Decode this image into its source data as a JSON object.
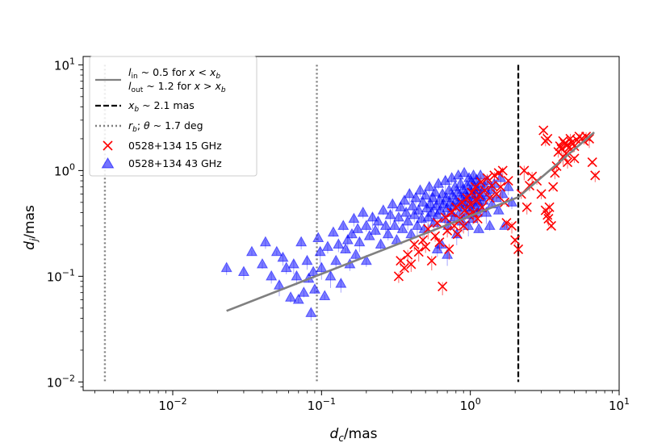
{
  "chart_data": {
    "type": "scatter",
    "title": "",
    "xlabel": {
      "main": "d",
      "sub": "c",
      "rest": "/mas"
    },
    "ylabel": {
      "main": "d",
      "sub": "j",
      "rest": "/mas"
    },
    "xscale": "log",
    "yscale": "log",
    "xlim": [
      0.0025,
      10
    ],
    "ylim": [
      0.0083,
      12
    ],
    "xticks": [
      {
        "value": 0.01,
        "base": "10",
        "exp": "−2"
      },
      {
        "value": 0.1,
        "base": "10",
        "exp": "−1"
      },
      {
        "value": 1,
        "base": "10",
        "exp": "0"
      },
      {
        "value": 10,
        "base": "10",
        "exp": "1"
      }
    ],
    "yticks": [
      {
        "value": 0.01,
        "base": "10",
        "exp": "−2"
      },
      {
        "value": 0.1,
        "base": "10",
        "exp": "−1"
      },
      {
        "value": 1,
        "base": "10",
        "exp": "0"
      },
      {
        "value": 10,
        "base": "10",
        "exp": "1"
      }
    ],
    "legend_position": "top-left",
    "legend": [
      {
        "key": "fit",
        "line1": "l_in ~ 0.5 for x < x_b",
        "line2": "l_out ~ 1.2 for x > x_b"
      },
      {
        "key": "xb",
        "text": "x_b ~ 2.1 mas"
      },
      {
        "key": "rb",
        "text": "r_b;  θ ~ 1.7 deg"
      },
      {
        "key": "s15",
        "text": "0528+134 15 GHz"
      },
      {
        "key": "s43",
        "text": "0528+134 43 GHz"
      }
    ],
    "fit_line": {
      "color": "#808080",
      "points": [
        [
          0.023,
          0.047
        ],
        [
          2.1,
          0.56
        ],
        [
          6.8,
          2.3
        ]
      ]
    },
    "vlines": [
      {
        "x": 2.1,
        "style": "dashed",
        "color": "#000000",
        "ymin": 0.01,
        "ymax": 10
      },
      {
        "x": 0.0035,
        "style": "dotted",
        "color": "#808080",
        "ymin": 0.01,
        "ymax": 10
      },
      {
        "x": 0.093,
        "style": "dotted",
        "color": "#808080",
        "ymin": 0.01,
        "ymax": 10
      }
    ],
    "series": [
      {
        "key": "s15",
        "name": "0528+134 15 GHz",
        "marker": "x",
        "color": "#ff0000",
        "points": [
          [
            0.33,
            0.1
          ],
          [
            0.34,
            0.14
          ],
          [
            0.36,
            0.12
          ],
          [
            0.38,
            0.16
          ],
          [
            0.4,
            0.13
          ],
          [
            0.42,
            0.2
          ],
          [
            0.45,
            0.17
          ],
          [
            0.48,
            0.22
          ],
          [
            0.5,
            0.19
          ],
          [
            0.52,
            0.28
          ],
          [
            0.55,
            0.14
          ],
          [
            0.58,
            0.24
          ],
          [
            0.6,
            0.32
          ],
          [
            0.62,
            0.21
          ],
          [
            0.65,
            0.08
          ],
          [
            0.68,
            0.36
          ],
          [
            0.7,
            0.27
          ],
          [
            0.72,
            0.18
          ],
          [
            0.75,
            0.4
          ],
          [
            0.78,
            0.3
          ],
          [
            0.8,
            0.45
          ],
          [
            0.82,
            0.25
          ],
          [
            0.85,
            0.35
          ],
          [
            0.88,
            0.5
          ],
          [
            0.9,
            0.3
          ],
          [
            0.92,
            0.42
          ],
          [
            0.95,
            0.55
          ],
          [
            0.98,
            0.38
          ],
          [
            1.0,
            0.48
          ],
          [
            1.02,
            0.62
          ],
          [
            1.05,
            0.4
          ],
          [
            1.08,
            0.7
          ],
          [
            1.1,
            0.52
          ],
          [
            1.12,
            0.35
          ],
          [
            1.15,
            0.58
          ],
          [
            1.18,
            0.78
          ],
          [
            1.2,
            0.45
          ],
          [
            1.25,
            0.65
          ],
          [
            1.3,
            0.85
          ],
          [
            1.35,
            0.55
          ],
          [
            1.4,
            0.72
          ],
          [
            1.45,
            0.9
          ],
          [
            1.5,
            0.6
          ],
          [
            1.55,
            0.95
          ],
          [
            1.6,
            0.7
          ],
          [
            1.65,
            1.0
          ],
          [
            1.7,
            0.5
          ],
          [
            1.75,
            0.32
          ],
          [
            1.8,
            0.8
          ],
          [
            1.9,
            0.3
          ],
          [
            2.0,
            0.22
          ],
          [
            2.1,
            0.18
          ],
          [
            2.2,
            0.6
          ],
          [
            2.3,
            1.0
          ],
          [
            2.4,
            0.45
          ],
          [
            2.5,
            0.72
          ],
          [
            2.6,
            0.88
          ],
          [
            2.8,
            0.8
          ],
          [
            3.0,
            0.6
          ],
          [
            3.2,
            0.42
          ],
          [
            3.3,
            0.38
          ],
          [
            3.4,
            0.45
          ],
          [
            3.5,
            0.3
          ],
          [
            3.6,
            0.7
          ],
          [
            3.7,
            0.95
          ],
          [
            3.8,
            1.1
          ],
          [
            3.9,
            1.5
          ],
          [
            4.0,
            1.7
          ],
          [
            4.1,
            1.6
          ],
          [
            4.2,
            1.9
          ],
          [
            4.3,
            1.8
          ],
          [
            4.4,
            1.45
          ],
          [
            4.5,
            1.75
          ],
          [
            4.6,
            1.65
          ],
          [
            4.7,
            2.0
          ],
          [
            4.8,
            1.85
          ],
          [
            5.0,
            1.7
          ],
          [
            5.2,
            1.95
          ],
          [
            5.4,
            2.1
          ],
          [
            5.6,
            2.0
          ],
          [
            5.8,
            1.9
          ],
          [
            6.0,
            2.1
          ],
          [
            6.3,
            2.0
          ],
          [
            6.6,
            1.2
          ],
          [
            6.9,
            0.9
          ],
          [
            3.1,
            2.4
          ],
          [
            3.2,
            1.9
          ],
          [
            3.3,
            2.0
          ],
          [
            4.2,
            1.35
          ],
          [
            4.5,
            1.2
          ],
          [
            5.0,
            1.3
          ],
          [
            3.35,
            0.35
          ]
        ]
      },
      {
        "key": "s43",
        "name": "0528+134 43 GHz",
        "marker": "triangle",
        "color": "#0000ff",
        "points": [
          [
            0.023,
            0.12
          ],
          [
            0.03,
            0.11
          ],
          [
            0.034,
            0.17
          ],
          [
            0.04,
            0.13
          ],
          [
            0.042,
            0.21
          ],
          [
            0.046,
            0.1
          ],
          [
            0.05,
            0.17
          ],
          [
            0.052,
            0.082
          ],
          [
            0.055,
            0.15
          ],
          [
            0.058,
            0.12
          ],
          [
            0.062,
            0.063
          ],
          [
            0.065,
            0.13
          ],
          [
            0.068,
            0.1
          ],
          [
            0.07,
            0.06
          ],
          [
            0.073,
            0.21
          ],
          [
            0.076,
            0.07
          ],
          [
            0.08,
            0.14
          ],
          [
            0.082,
            0.095
          ],
          [
            0.085,
            0.045
          ],
          [
            0.088,
            0.11
          ],
          [
            0.09,
            0.075
          ],
          [
            0.095,
            0.23
          ],
          [
            0.098,
            0.17
          ],
          [
            0.1,
            0.12
          ],
          [
            0.105,
            0.065
          ],
          [
            0.11,
            0.19
          ],
          [
            0.115,
            0.1
          ],
          [
            0.12,
            0.26
          ],
          [
            0.125,
            0.14
          ],
          [
            0.13,
            0.2
          ],
          [
            0.135,
            0.085
          ],
          [
            0.14,
            0.3
          ],
          [
            0.145,
            0.18
          ],
          [
            0.15,
            0.22
          ],
          [
            0.155,
            0.13
          ],
          [
            0.16,
            0.25
          ],
          [
            0.165,
            0.35
          ],
          [
            0.17,
            0.16
          ],
          [
            0.175,
            0.28
          ],
          [
            0.18,
            0.21
          ],
          [
            0.19,
            0.4
          ],
          [
            0.2,
            0.3
          ],
          [
            0.21,
            0.24
          ],
          [
            0.22,
            0.36
          ],
          [
            0.23,
            0.27
          ],
          [
            0.24,
            0.33
          ],
          [
            0.25,
            0.2
          ],
          [
            0.26,
            0.42
          ],
          [
            0.27,
            0.3
          ],
          [
            0.28,
            0.25
          ],
          [
            0.29,
            0.38
          ],
          [
            0.3,
            0.48
          ],
          [
            0.31,
            0.3
          ],
          [
            0.32,
            0.22
          ],
          [
            0.33,
            0.36
          ],
          [
            0.34,
            0.45
          ],
          [
            0.35,
            0.28
          ],
          [
            0.36,
            0.52
          ],
          [
            0.37,
            0.4
          ],
          [
            0.38,
            0.33
          ],
          [
            0.39,
            0.6
          ],
          [
            0.4,
            0.25
          ],
          [
            0.41,
            0.46
          ],
          [
            0.42,
            0.38
          ],
          [
            0.43,
            0.55
          ],
          [
            0.44,
            0.3
          ],
          [
            0.45,
            0.42
          ],
          [
            0.46,
            0.65
          ],
          [
            0.47,
            0.35
          ],
          [
            0.48,
            0.5
          ],
          [
            0.49,
            0.28
          ],
          [
            0.5,
            0.58
          ],
          [
            0.51,
            0.44
          ],
          [
            0.52,
            0.36
          ],
          [
            0.53,
            0.7
          ],
          [
            0.54,
            0.48
          ],
          [
            0.55,
            0.4
          ],
          [
            0.56,
            0.55
          ],
          [
            0.57,
            0.32
          ],
          [
            0.58,
            0.62
          ],
          [
            0.59,
            0.46
          ],
          [
            0.6,
            0.38
          ],
          [
            0.61,
            0.75
          ],
          [
            0.62,
            0.52
          ],
          [
            0.63,
            0.42
          ],
          [
            0.64,
            0.2
          ],
          [
            0.65,
            0.6
          ],
          [
            0.66,
            0.48
          ],
          [
            0.67,
            0.35
          ],
          [
            0.68,
            0.8
          ],
          [
            0.69,
            0.55
          ],
          [
            0.7,
            0.44
          ],
          [
            0.71,
            0.3
          ],
          [
            0.72,
            0.65
          ],
          [
            0.73,
            0.5
          ],
          [
            0.74,
            0.4
          ],
          [
            0.75,
            0.85
          ],
          [
            0.76,
            0.58
          ],
          [
            0.77,
            0.46
          ],
          [
            0.78,
            0.36
          ],
          [
            0.79,
            0.7
          ],
          [
            0.8,
            0.52
          ],
          [
            0.81,
            0.25
          ],
          [
            0.82,
            0.62
          ],
          [
            0.83,
            0.9
          ],
          [
            0.84,
            0.48
          ],
          [
            0.85,
            0.4
          ],
          [
            0.86,
            0.75
          ],
          [
            0.87,
            0.56
          ],
          [
            0.88,
            0.33
          ],
          [
            0.89,
            0.66
          ],
          [
            0.9,
            0.5
          ],
          [
            0.91,
            0.95
          ],
          [
            0.92,
            0.45
          ],
          [
            0.93,
            0.6
          ],
          [
            0.94,
            0.38
          ],
          [
            0.95,
            0.72
          ],
          [
            0.96,
            0.55
          ],
          [
            0.97,
            0.3
          ],
          [
            0.98,
            0.85
          ],
          [
            0.99,
            0.48
          ],
          [
            1.0,
            0.65
          ],
          [
            1.01,
            0.42
          ],
          [
            1.02,
            0.78
          ],
          [
            1.03,
            0.58
          ],
          [
            1.04,
            0.35
          ],
          [
            1.05,
            0.9
          ],
          [
            1.06,
            0.52
          ],
          [
            1.07,
            0.7
          ],
          [
            1.08,
            0.45
          ],
          [
            1.09,
            0.6
          ],
          [
            1.1,
            0.82
          ],
          [
            1.11,
            0.4
          ],
          [
            1.12,
            0.66
          ],
          [
            1.13,
            0.5
          ],
          [
            1.14,
            0.28
          ],
          [
            1.15,
            0.75
          ],
          [
            1.16,
            0.56
          ],
          [
            1.17,
            0.9
          ],
          [
            1.18,
            0.44
          ],
          [
            1.2,
            0.62
          ],
          [
            1.22,
            0.52
          ],
          [
            1.25,
            0.7
          ],
          [
            1.28,
            0.4
          ],
          [
            1.3,
            0.8
          ],
          [
            1.32,
            0.58
          ],
          [
            1.35,
            0.3
          ],
          [
            1.38,
            0.66
          ],
          [
            1.4,
            0.48
          ],
          [
            1.45,
            0.75
          ],
          [
            1.5,
            0.55
          ],
          [
            1.55,
            0.42
          ],
          [
            1.6,
            0.85
          ],
          [
            1.65,
            0.6
          ],
          [
            1.7,
            0.3
          ],
          [
            1.8,
            0.7
          ],
          [
            1.9,
            0.5
          ],
          [
            0.2,
            0.14
          ],
          [
            0.6,
            0.18
          ],
          [
            0.7,
            0.16
          ]
        ]
      }
    ]
  }
}
